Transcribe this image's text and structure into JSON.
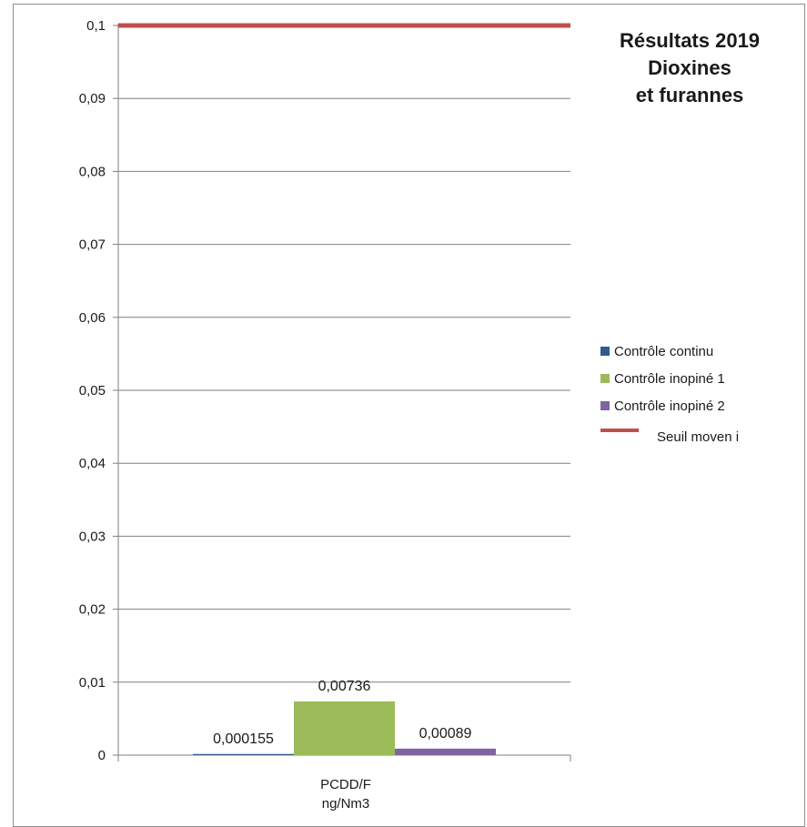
{
  "title_lines": [
    "Résultats 2019",
    "Dioxines",
    "et furannes"
  ],
  "colors": {
    "continu": "#2f5c8f",
    "inopine1": "#9bbb59",
    "inopine2": "#8064a2",
    "seuil": "#c0504d",
    "axis": "#7f7f7f",
    "grid": "#7f7f7f"
  },
  "category_lines": [
    "PCDD/F",
    "ng/Nm3"
  ],
  "legend": [
    {
      "label": "Contrôle continu",
      "color_key": "continu",
      "kind": "square"
    },
    {
      "label": "Contrôle inopiné 1",
      "color_key": "inopine1",
      "kind": "square"
    },
    {
      "label": "Contrôle inopiné 2",
      "color_key": "inopine2",
      "kind": "square"
    },
    {
      "label": "Seuil moven i",
      "color_key": "seuil",
      "kind": "line"
    }
  ],
  "chart_data": {
    "type": "bar",
    "title": "Résultats 2019 Dioxines et furannes",
    "categories": [
      "PCDD/F ng/Nm3"
    ],
    "series": [
      {
        "name": "Contrôle continu",
        "values": [
          0.000155
        ],
        "label": "0,000155"
      },
      {
        "name": "Contrôle inopiné 1",
        "values": [
          0.00736
        ],
        "label": "0,00736"
      },
      {
        "name": "Contrôle inopiné 2",
        "values": [
          0.00089
        ],
        "label": "0,00089"
      }
    ],
    "threshold": {
      "name": "Seuil moven i",
      "value": 0.1
    },
    "ylim": [
      0,
      0.1
    ],
    "yticks": [
      0,
      0.01,
      0.02,
      0.03,
      0.04,
      0.05,
      0.06,
      0.07,
      0.08,
      0.09,
      0.1
    ],
    "ytick_labels": [
      "0",
      "0,01",
      "0,02",
      "0,03",
      "0,04",
      "0,05",
      "0,06",
      "0,07",
      "0,08",
      "0,09",
      "0,1"
    ],
    "grid": true,
    "legend_position": "right"
  }
}
